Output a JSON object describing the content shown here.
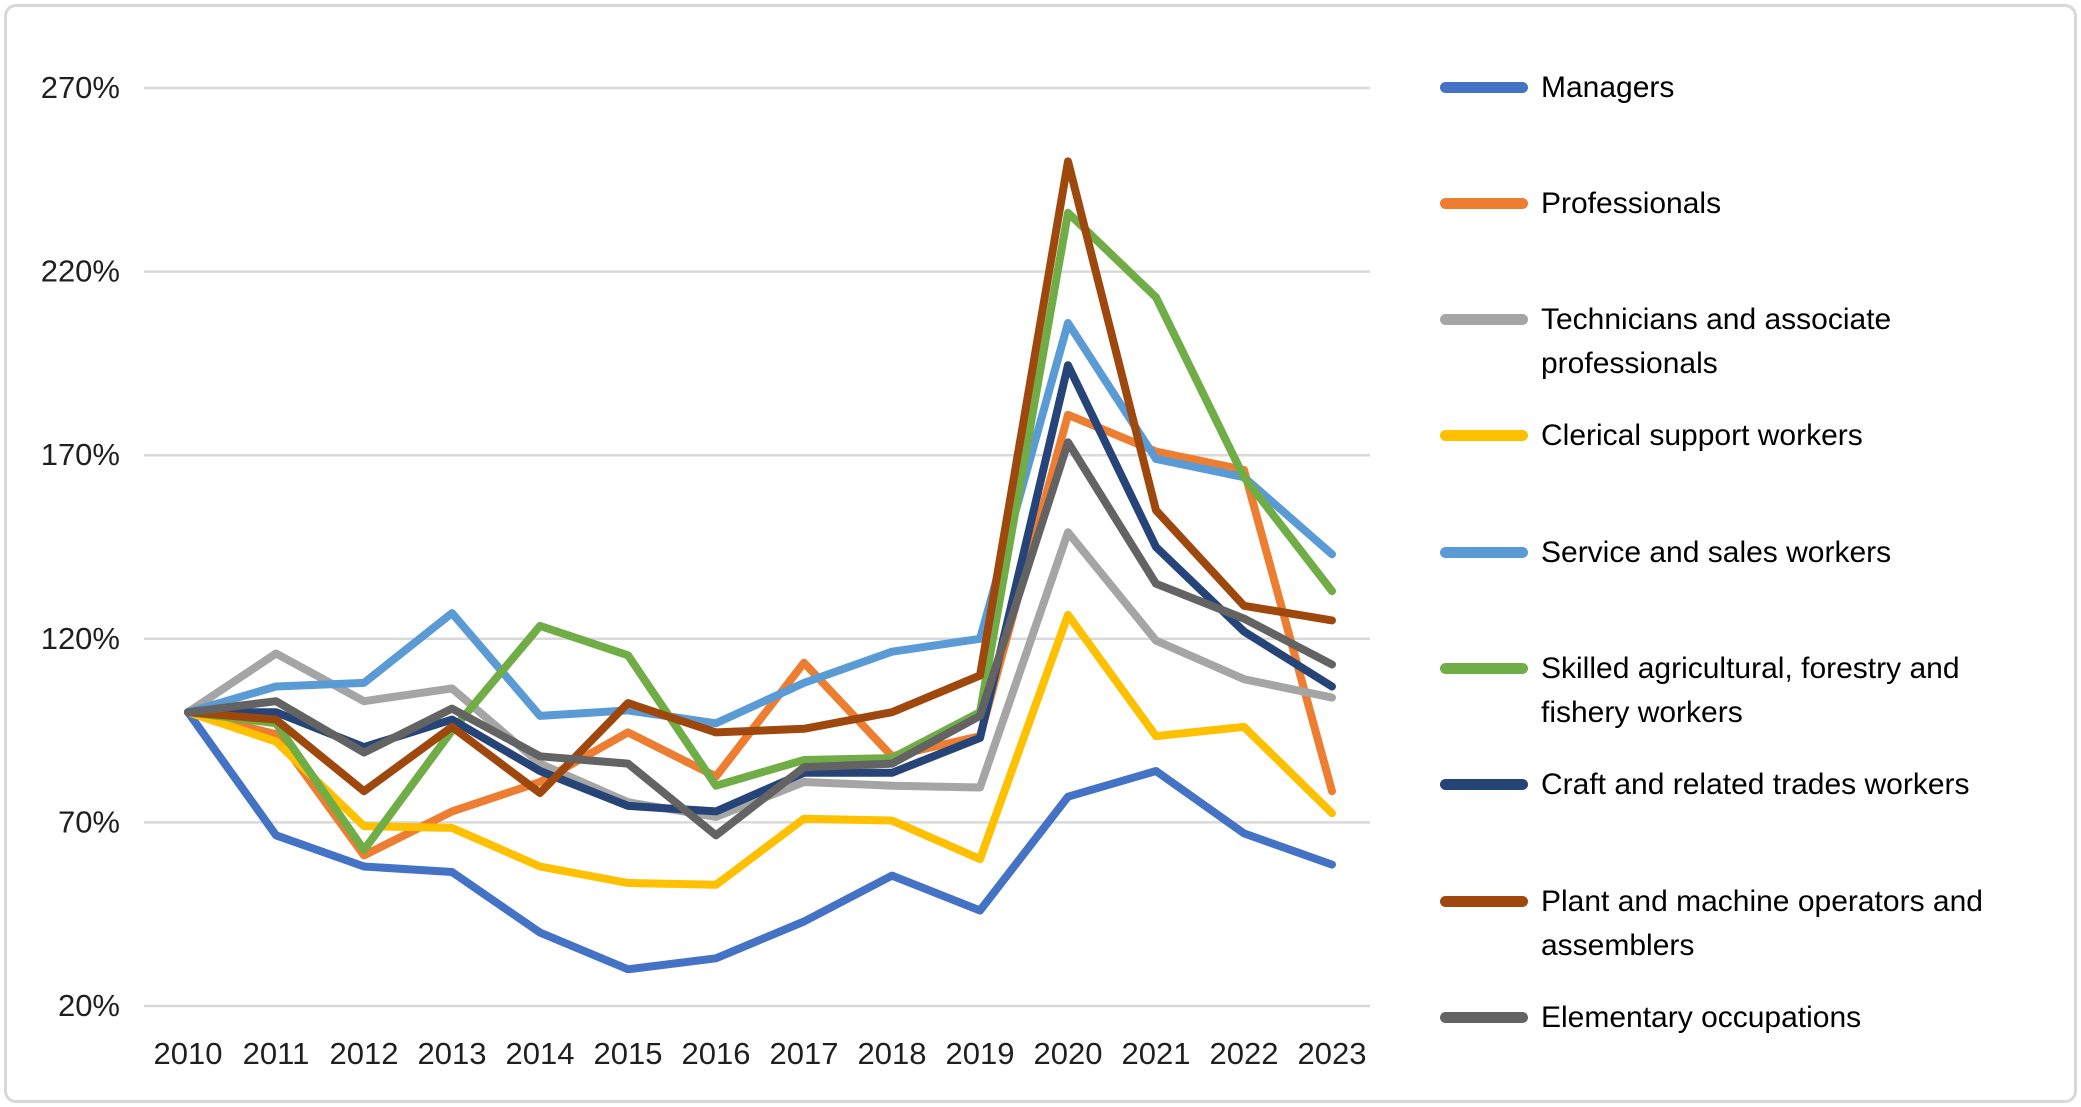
{
  "chart_data": {
    "type": "line",
    "title": "",
    "units": "percent",
    "categories": [
      "2010",
      "2011",
      "2012",
      "2013",
      "2014",
      "2015",
      "2016",
      "2017",
      "2018",
      "2019",
      "2020",
      "2021",
      "2022",
      "2023"
    ],
    "y_axis": {
      "min": 20,
      "max": 270,
      "step": 50,
      "tick_labels": [
        "20%",
        "70%",
        "120%",
        "170%",
        "220%",
        "270%"
      ]
    },
    "grid": true,
    "legend_position": "right",
    "series": [
      {
        "name": "Managers",
        "color": "#4472C4",
        "values": [
          100,
          66.5,
          58,
          56.5,
          40,
          30,
          33,
          43,
          55.5,
          46,
          77,
          84,
          67,
          58.5
        ]
      },
      {
        "name": "Professionals",
        "color": "#ED7D31",
        "values": [
          100,
          94,
          61,
          73,
          81,
          94.5,
          82.5,
          113.5,
          88,
          93.5,
          181,
          171,
          166,
          78.5
        ]
      },
      {
        "name": "Technicians and associate professionals",
        "color": "#A5A5A5",
        "values": [
          100,
          116,
          103,
          106.5,
          86,
          75.5,
          71.5,
          81,
          80,
          79.5,
          149,
          119.5,
          109,
          104
        ]
      },
      {
        "name": "Clerical support workers",
        "color": "#FFC000",
        "values": [
          100,
          92,
          69,
          68.5,
          58,
          53.5,
          53,
          71,
          70.5,
          60,
          126.5,
          93.5,
          96,
          72.5
        ]
      },
      {
        "name": "Service and sales workers",
        "color": "#5B9BD5",
        "values": [
          100,
          107,
          108,
          127,
          99,
          100.5,
          97,
          108,
          116.5,
          120,
          206,
          169,
          164,
          143
        ]
      },
      {
        "name": "Skilled agricultural, forestry and fishery workers",
        "color": "#70AD47",
        "values": [
          100,
          97,
          62.5,
          95,
          123.5,
          115.5,
          80,
          87,
          87.5,
          100,
          236,
          213,
          164,
          133
        ]
      },
      {
        "name": "Craft and related trades workers",
        "color": "#264478",
        "values": [
          100,
          100,
          90.5,
          98,
          84,
          74.5,
          73,
          83.5,
          83.5,
          93,
          194.5,
          145,
          122,
          107
        ]
      },
      {
        "name": "Plant and machine operators and assemblers",
        "color": "#9E480E",
        "values": [
          100,
          98,
          78.5,
          96,
          78,
          102.5,
          94.5,
          95.5,
          100,
          110,
          250,
          155,
          129,
          125
        ]
      },
      {
        "name": "Elementary occupations",
        "color": "#636363",
        "values": [
          100,
          103,
          89,
          101,
          88,
          86,
          66.5,
          85,
          86,
          99,
          173.5,
          135,
          125.5,
          113
        ]
      }
    ]
  }
}
